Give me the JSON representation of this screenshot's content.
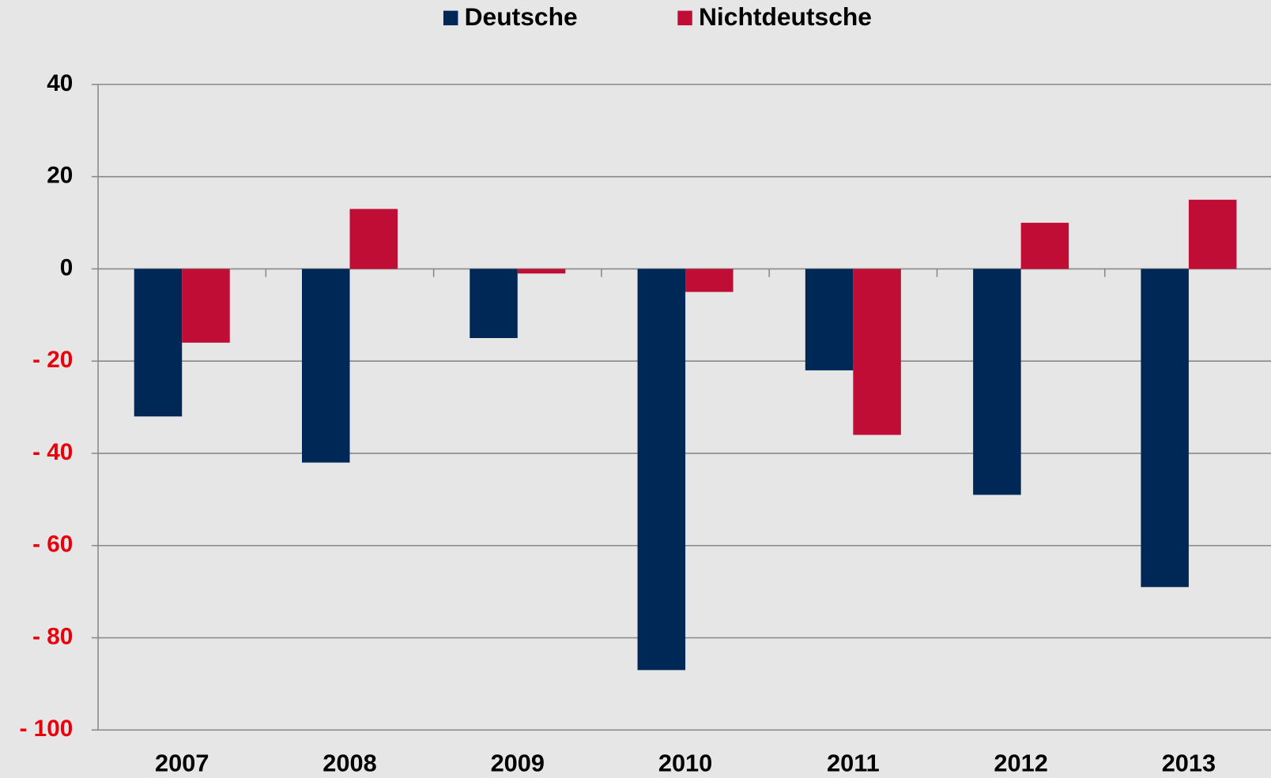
{
  "chart_data": {
    "type": "bar",
    "categories": [
      "2007",
      "2008",
      "2009",
      "2010",
      "2011",
      "2012",
      "2013"
    ],
    "series": [
      {
        "name": "Deutsche",
        "color": "#002856",
        "values": [
          -32,
          -42,
          -15,
          -87,
          -22,
          -49,
          -69
        ]
      },
      {
        "name": "Nichtdeutsche",
        "color": "#c00d36",
        "values": [
          -16,
          13,
          -1,
          -5,
          -36,
          10,
          15
        ]
      }
    ],
    "ylim": [
      -100,
      40
    ],
    "yticks": [
      {
        "value": -100,
        "label": "- 100"
      },
      {
        "value": -80,
        "label": "- 80"
      },
      {
        "value": -60,
        "label": "- 60"
      },
      {
        "value": -40,
        "label": "- 40"
      },
      {
        "value": -20,
        "label": "- 20"
      },
      0,
      20,
      40
    ],
    "negative_tick_color": "#e8000d",
    "grid": true,
    "legend": "top"
  }
}
